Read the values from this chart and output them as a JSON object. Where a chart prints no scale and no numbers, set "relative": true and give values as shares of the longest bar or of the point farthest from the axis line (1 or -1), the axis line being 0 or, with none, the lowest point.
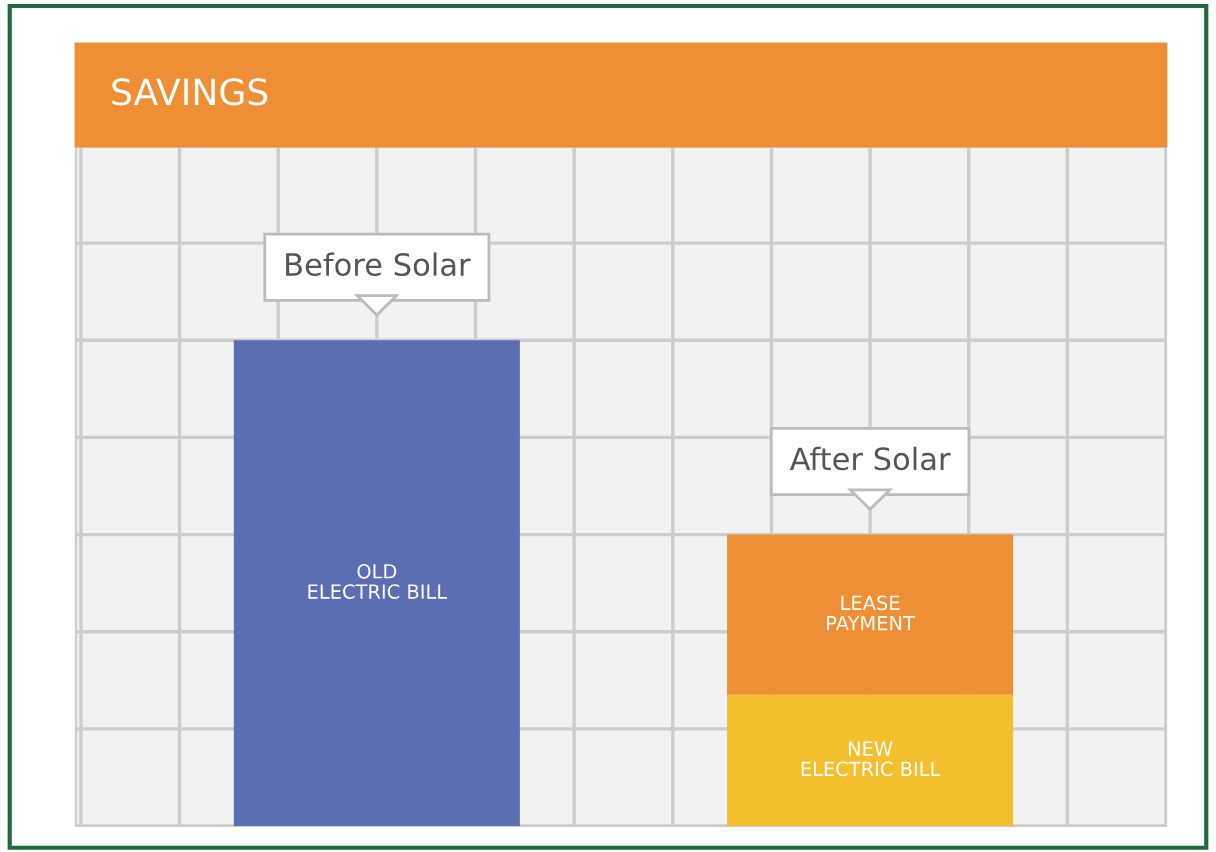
{
  "chart_data": {
    "type": "bar",
    "title": "SAVINGS",
    "stacked": true,
    "relative": true,
    "grid": true,
    "categories": [
      "Before Solar",
      "After Solar"
    ],
    "series": [
      {
        "name": "NEW\nELECTRIC BILL",
        "color": "#f4bf2c",
        "values": [
          null,
          0.27
        ]
      },
      {
        "name": "LEASE\nPAYMENT",
        "color": "#ef8f35",
        "values": [
          null,
          0.33
        ]
      },
      {
        "name": "OLD\nELECTRIC BILL",
        "color": "#5b6db3",
        "values": [
          1,
          null
        ]
      }
    ]
  }
}
